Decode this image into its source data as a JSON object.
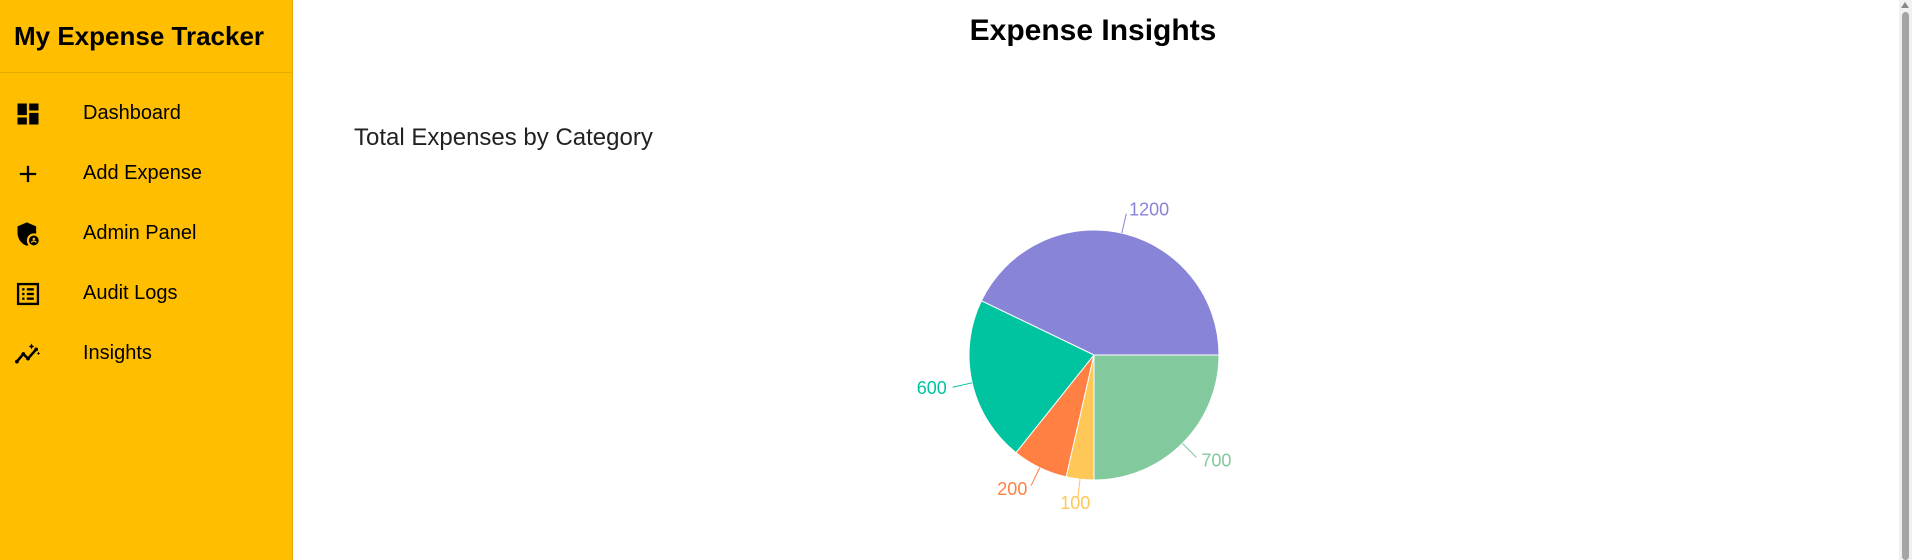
{
  "app": {
    "title": "My Expense Tracker"
  },
  "sidebar": {
    "items": [
      {
        "label": "Dashboard",
        "icon": "dashboard-icon"
      },
      {
        "label": "Add Expense",
        "icon": "plus-icon"
      },
      {
        "label": "Admin Panel",
        "icon": "admin-shield-icon"
      },
      {
        "label": "Audit Logs",
        "icon": "list-icon"
      },
      {
        "label": "Insights",
        "icon": "insights-icon"
      }
    ]
  },
  "main": {
    "title": "Expense Insights"
  },
  "chart_data": {
    "type": "pie",
    "title": "Total Expenses by Category",
    "values": [
      1200,
      600,
      200,
      100,
      700
    ],
    "labels": [
      "1200",
      "600",
      "200",
      "100",
      "700"
    ],
    "colors": [
      "#8884d8",
      "#00c49f",
      "#ff8042",
      "#ffc658",
      "#82ca9d"
    ],
    "legend": "none"
  },
  "colors": {
    "sidebar_bg": "#ffbf00",
    "background": "#ffffff"
  }
}
